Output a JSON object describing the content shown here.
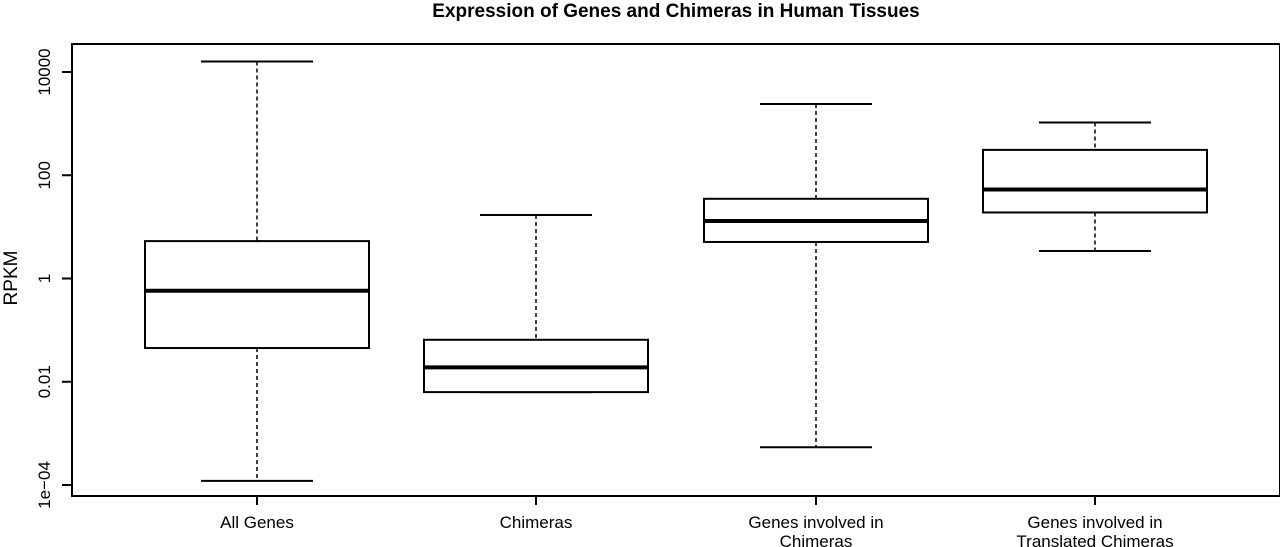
{
  "chart_data": {
    "type": "boxplot",
    "title": "Expression of Genes and Chimeras in Human Tissues",
    "xlabel": "",
    "ylabel": "RPKM",
    "y_scale": "log10",
    "ylim": [
      0.0001,
      10000
    ],
    "y_ticks": [
      {
        "value": 0.0001,
        "label": "1e−04"
      },
      {
        "value": 0.01,
        "label": "0.01"
      },
      {
        "value": 1,
        "label": "1"
      },
      {
        "value": 100,
        "label": "100"
      },
      {
        "value": 10000,
        "label": "10000"
      }
    ],
    "boxes": [
      {
        "category": [
          "All Genes"
        ],
        "whisker_low": 0.00012,
        "q1": 0.045,
        "median": 0.58,
        "q3": 5.3,
        "whisker_high": 16000
      },
      {
        "category": [
          "Chimeras"
        ],
        "whisker_low": 0.0063,
        "q1": 0.0063,
        "median": 0.019,
        "q3": 0.065,
        "whisker_high": 17
      },
      {
        "category": [
          "Genes involved in",
          "Chimeras"
        ],
        "whisker_low": 0.00054,
        "q1": 5.1,
        "median": 13,
        "q3": 35,
        "whisker_high": 2400
      },
      {
        "category": [
          "Genes involved in",
          "Translated Chimeras"
        ],
        "whisker_low": 3.4,
        "q1": 19,
        "median": 53,
        "q3": 310,
        "whisker_high": 1050
      }
    ],
    "grid": false,
    "legend": "none"
  }
}
